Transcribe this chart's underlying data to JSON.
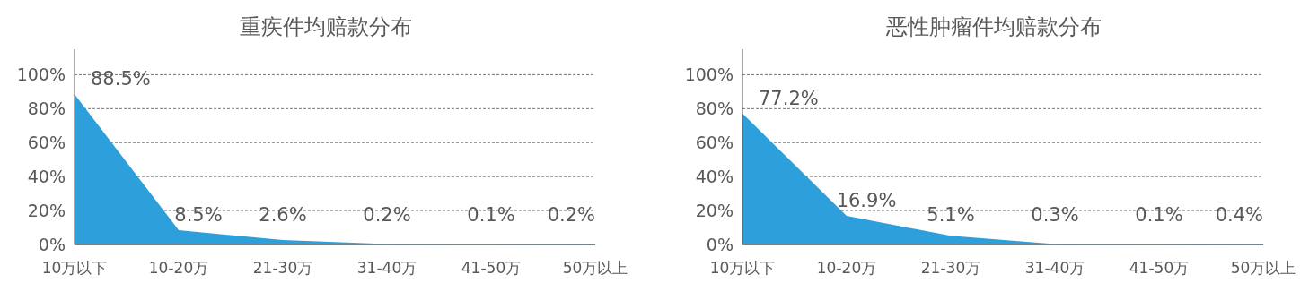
{
  "chart_data": [
    {
      "type": "area",
      "title": "重疾件均赔款分布",
      "categories": [
        "10万以下",
        "10-20万",
        "21-30万",
        "31-40万",
        "41-50万",
        "50万以上"
      ],
      "values": [
        88.5,
        8.5,
        2.6,
        0.2,
        0.1,
        0.2
      ],
      "color": "#2d9fdb",
      "data_labels": true,
      "value_labels": [
        "88.5%",
        "8.5%",
        "2.6%",
        "0.2%",
        "0.1%",
        "0.2%"
      ],
      "ylim": [
        0,
        115
      ],
      "yticks": [
        {
          "value": 0,
          "label": "0%"
        },
        {
          "value": 20,
          "label": "20%"
        },
        {
          "value": 40,
          "label": "40%"
        },
        {
          "value": 60,
          "label": "60%"
        },
        {
          "value": 80,
          "label": "80%"
        },
        {
          "value": 100,
          "label": "100%"
        }
      ],
      "grid": "y"
    },
    {
      "type": "area",
      "title": "恶性肿瘤件均赔款分布",
      "categories": [
        "10万以下",
        "10-20万",
        "21-30万",
        "31-40万",
        "41-50万",
        "50万以上"
      ],
      "values": [
        77.2,
        16.9,
        5.1,
        0.3,
        0.1,
        0.4
      ],
      "color": "#2d9fdb",
      "data_labels": true,
      "value_labels": [
        "77.2%",
        "16.9%",
        "5.1%",
        "0.3%",
        "0.1%",
        "0.4%"
      ],
      "ylim": [
        0,
        115
      ],
      "yticks": [
        {
          "value": 0,
          "label": "0%"
        },
        {
          "value": 20,
          "label": "20%"
        },
        {
          "value": 40,
          "label": "40%"
        },
        {
          "value": 60,
          "label": "60%"
        },
        {
          "value": 80,
          "label": "80%"
        },
        {
          "value": 100,
          "label": "100%"
        }
      ],
      "grid": "y"
    }
  ]
}
